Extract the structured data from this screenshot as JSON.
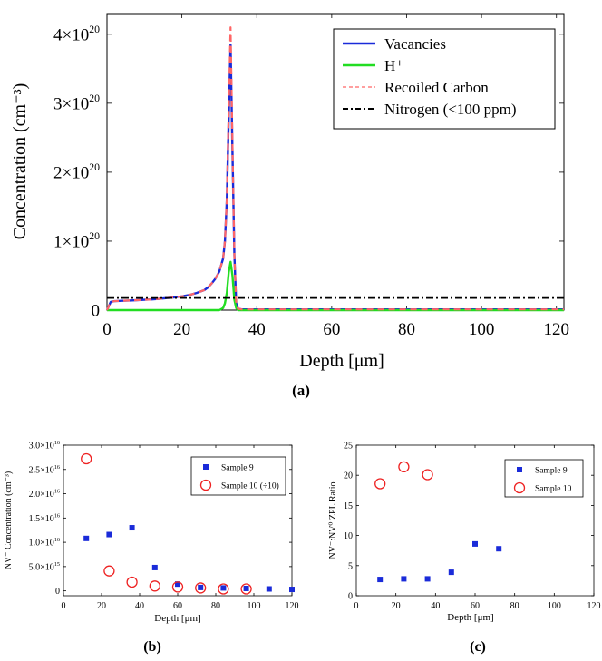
{
  "panels": {
    "a": "(a)",
    "b": "(b)",
    "c": "(c)"
  },
  "chart_data": [
    {
      "type": "line",
      "panel": "a",
      "xlabel": "Depth [μm]",
      "ylabel": "Concentration (cm⁻³)",
      "xlim": [
        0,
        122
      ],
      "ylim": [
        0,
        4.3e+20
      ],
      "xticks": [
        0,
        20,
        40,
        60,
        80,
        100,
        120
      ],
      "yticks": [
        0,
        1e+20,
        2e+20,
        3e+20,
        4e+20
      ],
      "ytick_mantissa": [
        "0",
        "1×10",
        "2×10",
        "3×10",
        "4×10"
      ],
      "ytick_exponent": [
        "",
        "20",
        "20",
        "20",
        "20"
      ],
      "legend_position": "top-right",
      "series": [
        {
          "name": "Vacancies",
          "color": "#1a2bd9",
          "style": "solid",
          "x": [
            0,
            1,
            2,
            4,
            6,
            8,
            10,
            12,
            14,
            16,
            18,
            20,
            22,
            24,
            26,
            27,
            28,
            29,
            30,
            31,
            31.5,
            32,
            32.5,
            33,
            33.5,
            34,
            34.5,
            35,
            36,
            40,
            60,
            80,
            100,
            120,
            122
          ],
          "y": [
            0,
            1.2e+19,
            1.3e+19,
            1.35e+19,
            1.4e+19,
            1.45e+19,
            1.5e+19,
            1.55e+19,
            1.65e+19,
            1.75e+19,
            1.85e+19,
            2e+19,
            2.2e+19,
            2.5e+19,
            2.9e+19,
            3.3e+19,
            3.9e+19,
            4.6e+19,
            5.6e+19,
            7.5e+19,
            1e+20,
            1.6e+20,
            2.8e+20,
            3.85e+20,
            2.3e+20,
            8e+19,
            1e+19,
            2e+18,
            1e+18,
            1e+18,
            1e+18,
            1e+18,
            1e+18,
            1e+18,
            1e+18
          ]
        },
        {
          "name": "H⁺",
          "color": "#22dd22",
          "style": "solid",
          "x": [
            0,
            30,
            31,
            31.5,
            32,
            32.5,
            33,
            33.5,
            34,
            34.5,
            35,
            40,
            60,
            80,
            100,
            120,
            122
          ],
          "y": [
            0,
            0,
            3e+18,
            1e+19,
            2.5e+19,
            5.5e+19,
            7e+19,
            5e+19,
            1.5e+19,
            3e+18,
            0,
            0,
            0,
            0,
            0,
            0,
            0
          ]
        },
        {
          "name": "Recoiled Carbon",
          "color": "#ff6666",
          "style": "dashed",
          "x": [
            0,
            1,
            2,
            4,
            6,
            8,
            10,
            12,
            14,
            16,
            18,
            20,
            22,
            24,
            26,
            27,
            28,
            29,
            30,
            31,
            31.5,
            32,
            32.5,
            33,
            33.5,
            34,
            34.5,
            35,
            36,
            40,
            60,
            80,
            100,
            120,
            122
          ],
          "y": [
            0,
            1.2e+19,
            1.3e+19,
            1.35e+19,
            1.4e+19,
            1.45e+19,
            1.5e+19,
            1.55e+19,
            1.65e+19,
            1.75e+19,
            1.85e+19,
            2e+19,
            2.2e+19,
            2.5e+19,
            2.9e+19,
            3.3e+19,
            3.9e+19,
            4.6e+19,
            5.6e+19,
            7.5e+19,
            1e+20,
            1.6e+20,
            2.9e+20,
            4.1e+20,
            2.4e+20,
            8e+19,
            1e+19,
            2e+18,
            1e+18,
            1e+18,
            1e+18,
            1e+18,
            1e+18,
            1e+18,
            1e+18
          ]
        },
        {
          "name": "Nitrogen (<100 ppm)",
          "color": "#000000",
          "style": "dashdot",
          "x": [
            0,
            122
          ],
          "y": [
            1.76e+19,
            1.76e+19
          ]
        }
      ]
    },
    {
      "type": "scatter",
      "panel": "b",
      "xlabel": "Depth [μm]",
      "ylabel": "NV⁻ Concentration (cm⁻³)",
      "xlim": [
        0,
        120
      ],
      "ylim": [
        -1000000000000000.0,
        3e+16
      ],
      "xticks": [
        0,
        20,
        40,
        60,
        80,
        100,
        120
      ],
      "yticks": [
        0,
        5000000000000000.0,
        1e+16,
        1.5e+16,
        2e+16,
        2.5e+16,
        3e+16
      ],
      "ytick_mantissa": [
        "0",
        "5.0×10",
        "1.0×10",
        "1.5×10",
        "2.0×10",
        "2.5×10",
        "3.0×10"
      ],
      "ytick_exponent": [
        "",
        "15",
        "16",
        "16",
        "16",
        "16",
        "16"
      ],
      "legend_position": "top-right",
      "series": [
        {
          "name": "Sample 9",
          "color": "#1a2bd9",
          "marker": "square",
          "x": [
            12,
            24,
            36,
            48,
            60,
            72,
            84,
            96,
            108,
            120
          ],
          "y": [
            1.08e+16,
            1.16e+16,
            1.3e+16,
            4800000000000000.0,
            1400000000000000.0,
            700000000000000.0,
            600000000000000.0,
            500000000000000.0,
            400000000000000.0,
            300000000000000.0
          ]
        },
        {
          "name": "Sample 10 (÷10)",
          "color": "#ee2222",
          "marker": "circle",
          "x": [
            12,
            24,
            36,
            48,
            60,
            72,
            84,
            96
          ],
          "y": [
            2.72e+16,
            4100000000000000.0,
            1800000000000000.0,
            1000000000000000.0,
            800000000000000.0,
            600000000000000.0,
            400000000000000.0,
            400000000000000.0
          ]
        }
      ]
    },
    {
      "type": "scatter",
      "panel": "c",
      "xlabel": "Depth [μm]",
      "ylabel": "NV⁻:NV⁰ ZPL Ratio",
      "xlim": [
        0,
        120
      ],
      "ylim": [
        0,
        25
      ],
      "xticks": [
        0,
        20,
        40,
        60,
        80,
        100,
        120
      ],
      "yticks": [
        0,
        5,
        10,
        15,
        20,
        25
      ],
      "ytick_mantissa": [
        "0",
        "5",
        "10",
        "15",
        "20",
        "25"
      ],
      "ytick_exponent": [
        "",
        "",
        "",
        "",
        "",
        ""
      ],
      "legend_position": "top-right",
      "series": [
        {
          "name": "Sample 9",
          "color": "#1a2bd9",
          "marker": "square",
          "x": [
            12,
            24,
            36,
            48,
            60,
            72
          ],
          "y": [
            2.7,
            2.8,
            2.8,
            3.9,
            8.6,
            7.8
          ]
        },
        {
          "name": "Sample 10",
          "color": "#ee2222",
          "marker": "circle",
          "x": [
            12,
            24,
            36
          ],
          "y": [
            18.6,
            21.4,
            20.1
          ]
        }
      ]
    }
  ]
}
